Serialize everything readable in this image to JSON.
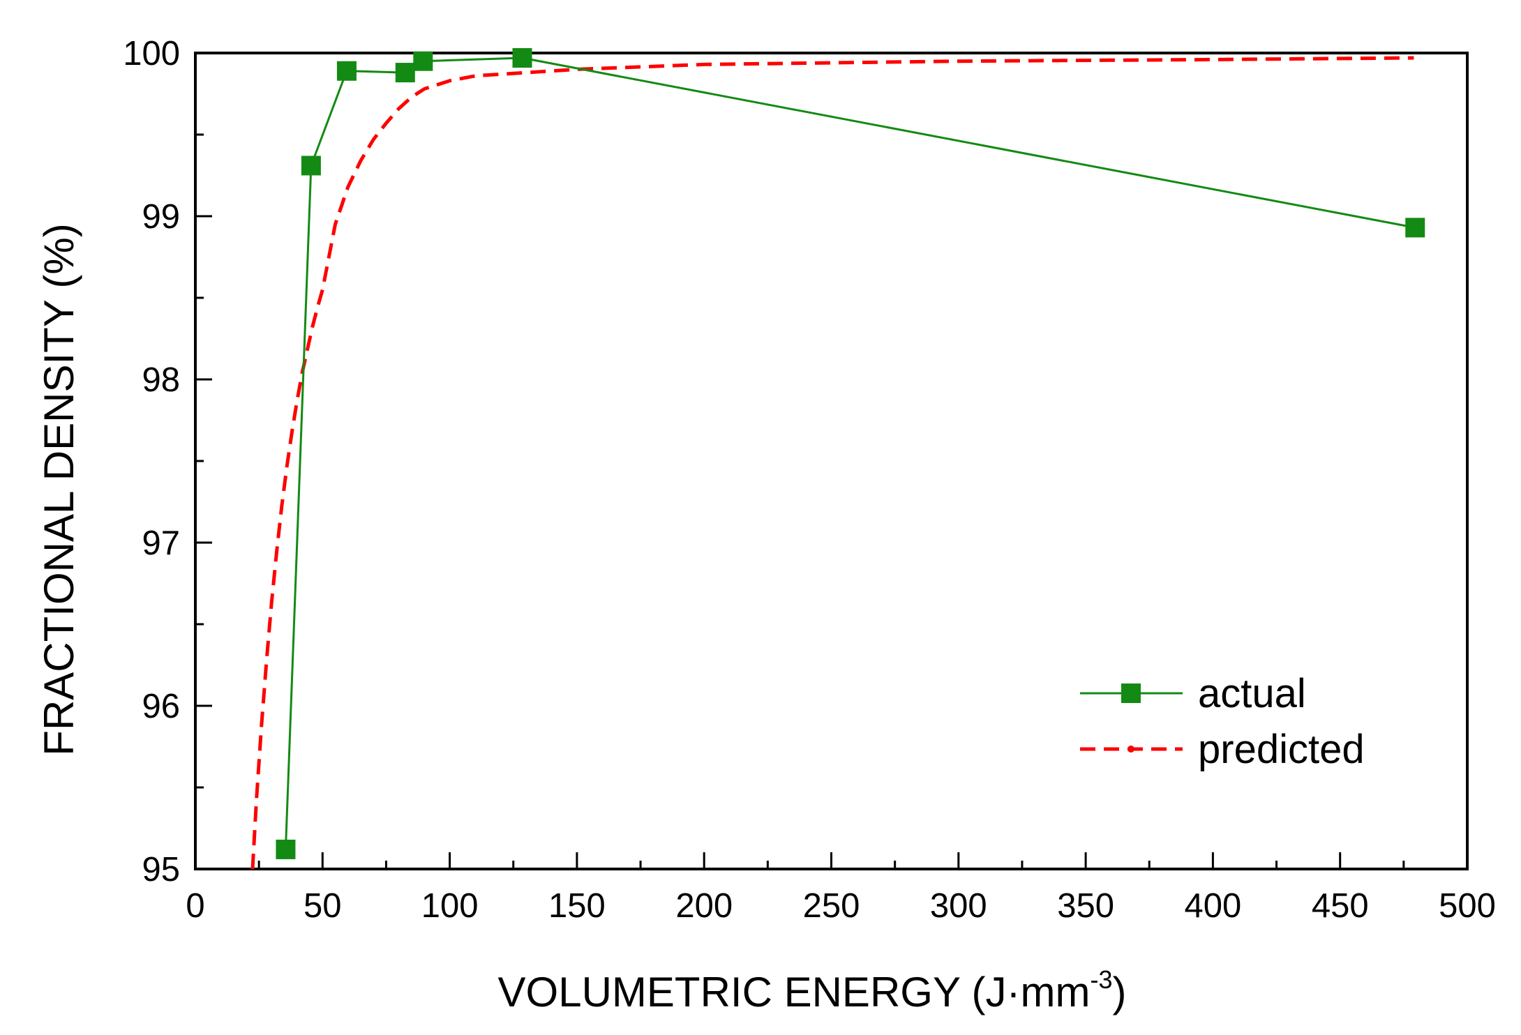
{
  "chart_data": {
    "type": "line",
    "title": "",
    "xlabel": "VOLUMETRIC ENERGY (J·mm",
    "xlabel_superscript": "-3",
    "xlabel_suffix": ")",
    "ylabel": "FRACTIONAL DENSITY (%)",
    "xlim": [
      0,
      500
    ],
    "ylim": [
      95,
      100
    ],
    "xticks": [
      0,
      50,
      100,
      150,
      200,
      250,
      300,
      350,
      400,
      450,
      500
    ],
    "xtick_labels": [
      "0",
      "50",
      "100",
      "150",
      "200",
      "250",
      "300",
      "350",
      "400",
      "450",
      "500"
    ],
    "yticks": [
      95,
      96,
      97,
      98,
      99,
      100
    ],
    "ytick_labels": [
      "95",
      "96",
      "97",
      "98",
      "99",
      "100"
    ],
    "grid": false,
    "legend_position": "bottom-right",
    "series": [
      {
        "name": "actual",
        "style": "solid-line-square-markers",
        "color": "#138a13",
        "x": [
          35.5,
          45.5,
          59.5,
          82.5,
          89.5,
          128.5,
          479.5
        ],
        "y": [
          95.12,
          99.31,
          99.89,
          99.88,
          99.95,
          99.97,
          98.93
        ]
      },
      {
        "name": "predicted",
        "style": "dashed",
        "color": "#ff0000",
        "x": [
          22.5,
          24,
          26,
          28,
          30,
          32,
          34,
          36,
          38,
          40,
          42,
          44,
          46,
          48,
          50,
          55,
          60,
          65,
          70,
          75,
          80,
          85,
          90,
          100,
          110,
          120,
          130,
          150,
          200,
          300,
          400,
          479
        ],
        "y": [
          95.0,
          95.42,
          95.88,
          96.28,
          96.64,
          96.95,
          97.23,
          97.47,
          97.68,
          97.87,
          98.04,
          98.18,
          98.32,
          98.44,
          98.55,
          98.95,
          99.18,
          99.34,
          99.47,
          99.57,
          99.66,
          99.73,
          99.78,
          99.83,
          99.86,
          99.87,
          99.88,
          99.9,
          99.93,
          99.95,
          99.96,
          99.97
        ]
      }
    ]
  }
}
